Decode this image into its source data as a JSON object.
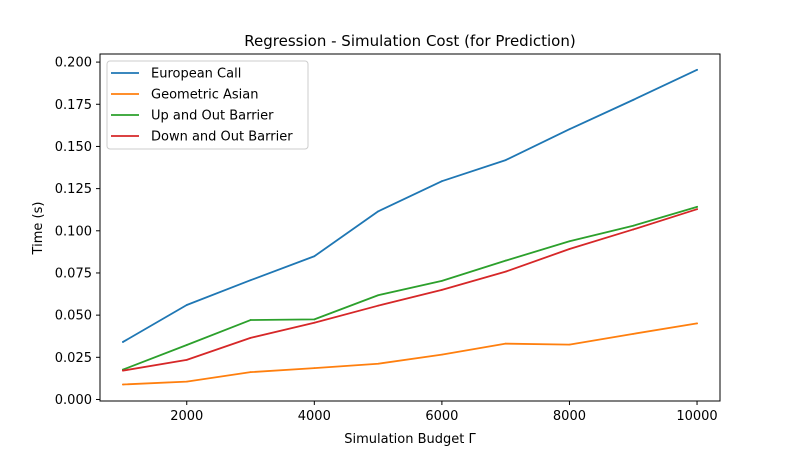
{
  "chart_data": {
    "type": "line",
    "title": "Regression - Simulation Cost (for Prediction)",
    "xlabel": "Simulation Budget Γ",
    "ylabel": "Time (s)",
    "xlim": [
      640,
      10360
    ],
    "ylim": [
      -0.0009,
      0.2048
    ],
    "xticks": [
      2000,
      4000,
      6000,
      8000,
      10000
    ],
    "xtick_labels": [
      "2000",
      "4000",
      "6000",
      "8000",
      "10000"
    ],
    "yticks": [
      0.0,
      0.025,
      0.05,
      0.075,
      0.1,
      0.125,
      0.15,
      0.175,
      0.2
    ],
    "ytick_labels": [
      "0.000",
      "0.025",
      "0.050",
      "0.075",
      "0.100",
      "0.125",
      "0.150",
      "0.175",
      "0.200"
    ],
    "grid": false,
    "legend_position": "upper-left",
    "x": [
      1000,
      2000,
      3000,
      4000,
      5000,
      6000,
      7000,
      8000,
      9000,
      10000
    ],
    "series": [
      {
        "name": "European Call",
        "color": "#1f77b4",
        "values": [
          0.0341,
          0.056,
          0.0707,
          0.0849,
          0.1115,
          0.1294,
          0.1419,
          0.1602,
          0.1776,
          0.1954
        ]
      },
      {
        "name": "Geometric Asian",
        "color": "#ff7f0e",
        "values": [
          0.0089,
          0.0106,
          0.0162,
          0.0186,
          0.0212,
          0.0266,
          0.0331,
          0.0325,
          0.0389,
          0.0451
        ]
      },
      {
        "name": "Up and Out Barrier",
        "color": "#2ca02c",
        "values": [
          0.0177,
          0.0323,
          0.0471,
          0.0475,
          0.0618,
          0.0703,
          0.0823,
          0.0938,
          0.103,
          0.1142
        ]
      },
      {
        "name": "Down and Out Barrier",
        "color": "#d62728",
        "values": [
          0.0171,
          0.0235,
          0.0365,
          0.0455,
          0.0556,
          0.065,
          0.0758,
          0.0892,
          0.1008,
          0.1128
        ]
      }
    ]
  }
}
